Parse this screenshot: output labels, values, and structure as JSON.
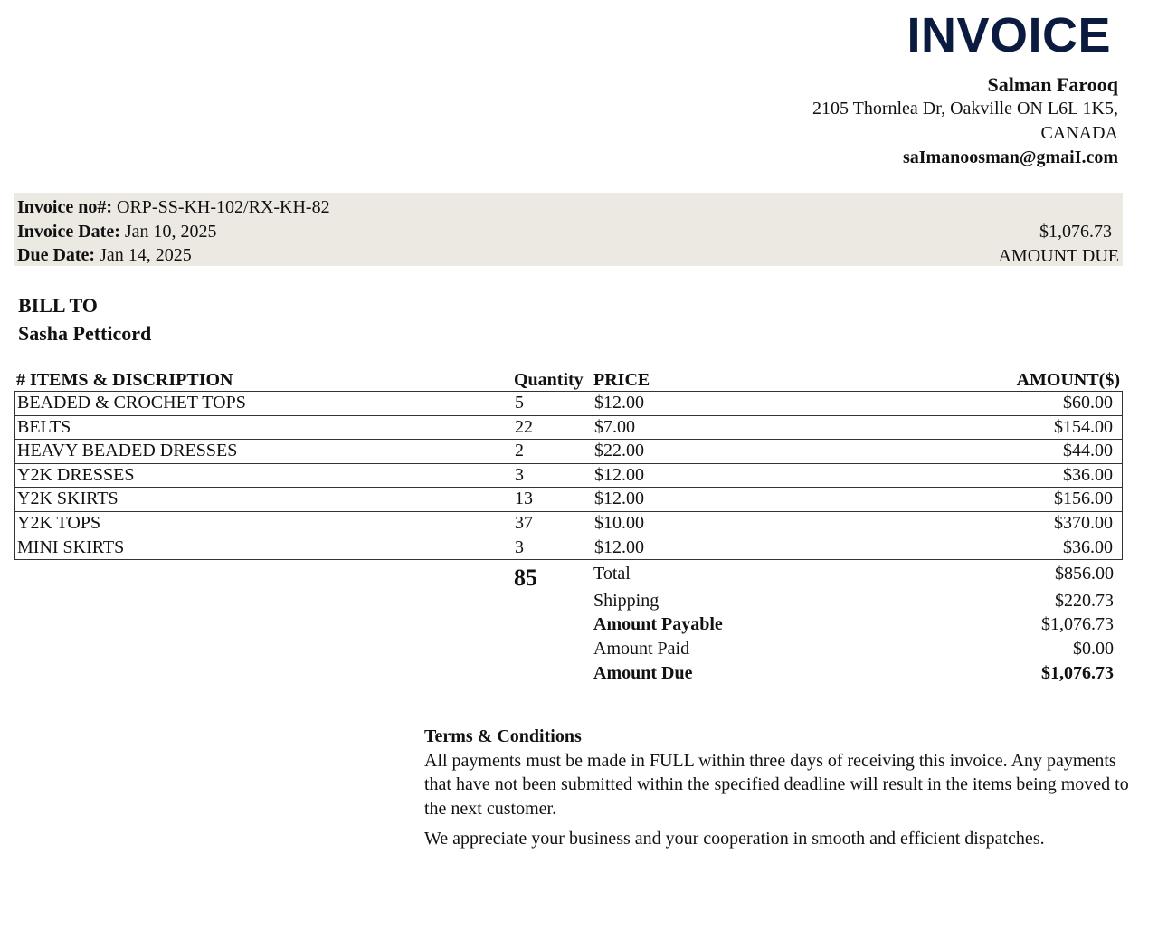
{
  "title": "INVOICE",
  "seller": {
    "name": "Salman Farooq",
    "address_line1": "2105 Thornlea Dr, Oakville ON L6L 1K5,",
    "address_line2": "CANADA",
    "email": "saImanoosman@gmaiI.com"
  },
  "invoice_info": {
    "number_label": "Invoice no#:",
    "number": "ORP-SS-KH-102/RX-KH-82",
    "date_label": "Invoice Date:",
    "date": "Jan 10, 2025",
    "due_label": "Due Date:",
    "due": "Jan 14, 2025",
    "amount_due": "$1,076.73",
    "amount_due_label": "AMOUNT DUE"
  },
  "bill_to": {
    "label": "BILL TO",
    "name": "Sasha Petticord"
  },
  "table": {
    "headers": {
      "desc": "# ITEMS & DISCRIPTION",
      "qty": "Quantity",
      "price": "PRICE",
      "amount": "AMOUNT($)"
    },
    "rows": [
      {
        "desc": "BEADED & CROCHET TOPS",
        "qty": "5",
        "price": "$12.00",
        "amount": "$60.00"
      },
      {
        "desc": "BELTS",
        "qty": "22",
        "price": "$7.00",
        "amount": "$154.00"
      },
      {
        "desc": "HEAVY BEADED DRESSES",
        "qty": "2",
        "price": "$22.00",
        "amount": "$44.00"
      },
      {
        "desc": "Y2K DRESSES",
        "qty": "3",
        "price": "$12.00",
        "amount": "$36.00"
      },
      {
        "desc": "Y2K SKIRTS",
        "qty": "13",
        "price": "$12.00",
        "amount": "$156.00"
      },
      {
        "desc": "Y2K TOPS",
        "qty": "37",
        "price": "$10.00",
        "amount": "$370.00"
      },
      {
        "desc": "MINI SKIRTS",
        "qty": "3",
        "price": "$12.00",
        "amount": "$36.00"
      }
    ]
  },
  "totals": {
    "quantity_total": "85",
    "total_label": "Total",
    "total": "$856.00",
    "shipping_label": "Shipping",
    "shipping": "$220.73",
    "payable_label": "Amount Payable",
    "payable": "$1,076.73",
    "paid_label": "Amount Paid",
    "paid": "$0.00",
    "due_label": "Amount Due",
    "due": "$1,076.73"
  },
  "terms": {
    "heading": "Terms & Conditions",
    "body": "All payments must be made in FULL within three days of receiving this invoice. Any payments that have not been submitted within the specified deadline will result in the items being moved to the next customer.",
    "closing": "We appreciate your business and your cooperation in smooth and efficient dispatches."
  }
}
